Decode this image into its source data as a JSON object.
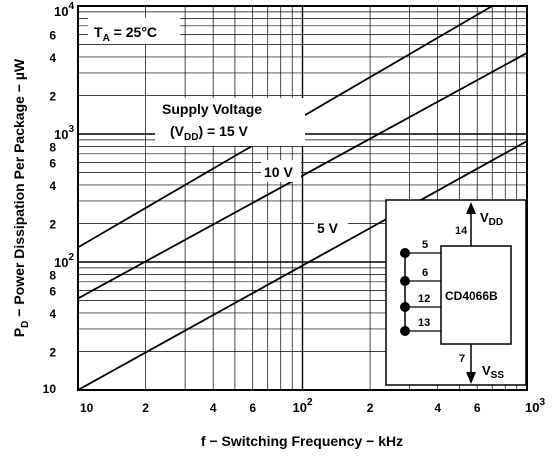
{
  "chart_data": {
    "type": "line",
    "x_scale": "log",
    "y_scale": "log",
    "xlim": [
      10,
      1000
    ],
    "ylim": [
      10,
      10000
    ],
    "grid": true,
    "x_tick_labels": [
      {
        "value": 10,
        "base": "10",
        "exp": ""
      },
      {
        "value": 20,
        "base": "2",
        "exp": ""
      },
      {
        "value": 40,
        "base": "4",
        "exp": ""
      },
      {
        "value": 60,
        "base": "6",
        "exp": ""
      },
      {
        "value": 100,
        "base": "10",
        "exp": "2"
      },
      {
        "value": 200,
        "base": "2",
        "exp": ""
      },
      {
        "value": 400,
        "base": "4",
        "exp": ""
      },
      {
        "value": 600,
        "base": "6",
        "exp": ""
      },
      {
        "value": 1000,
        "base": "10",
        "exp": "3"
      }
    ],
    "y_tick_labels": [
      {
        "value": 10,
        "base": "10",
        "exp": ""
      },
      {
        "value": 20,
        "base": "2",
        "exp": ""
      },
      {
        "value": 40,
        "base": "4",
        "exp": ""
      },
      {
        "value": 60,
        "base": "6",
        "exp": ""
      },
      {
        "value": 80,
        "base": "8",
        "exp": ""
      },
      {
        "value": 100,
        "base": "10",
        "exp": "2"
      },
      {
        "value": 200,
        "base": "2",
        "exp": ""
      },
      {
        "value": 400,
        "base": "4",
        "exp": ""
      },
      {
        "value": 600,
        "base": "6",
        "exp": ""
      },
      {
        "value": 800,
        "base": "8",
        "exp": ""
      },
      {
        "value": 1000,
        "base": "10",
        "exp": "3"
      },
      {
        "value": 2000,
        "base": "2",
        "exp": ""
      },
      {
        "value": 4000,
        "base": "4",
        "exp": ""
      },
      {
        "value": 6000,
        "base": "6",
        "exp": ""
      },
      {
        "value": 10000,
        "base": "10",
        "exp": "4"
      }
    ],
    "series": [
      {
        "name": "15 V",
        "x": [
          10,
          700
        ],
        "y": [
          130,
          10000
        ]
      },
      {
        "name": "10 V",
        "x": [
          10,
          1000
        ],
        "y": [
          52,
          4300
        ]
      },
      {
        "name": "5 V",
        "x": [
          10,
          1000
        ],
        "y": [
          10,
          880
        ]
      }
    ],
    "xlabel": {
      "pre": "f − Switching Frequency − kHz"
    },
    "ylabel": {
      "p": "P",
      "sub": "D",
      "rest": " − Power Dissipation Per Package − µW"
    },
    "ambient": {
      "t": "T",
      "sub": "A",
      "rest": " = 25°C"
    },
    "annotations": {
      "supply_line1": "Supply Voltage",
      "supply_pre": "(V",
      "supply_sub": "DD",
      "supply_post": ") = 15 V",
      "label_10v": "10 V",
      "label_5v": "5 V"
    },
    "inset": {
      "chip": "CD4066B",
      "pins": [
        "5",
        "6",
        "12",
        "13"
      ],
      "pin_top": "14",
      "pin_bottom": "7",
      "vdd_v": "V",
      "vdd_sub": "DD",
      "vss_v": "V",
      "vss_sub": "SS"
    }
  }
}
